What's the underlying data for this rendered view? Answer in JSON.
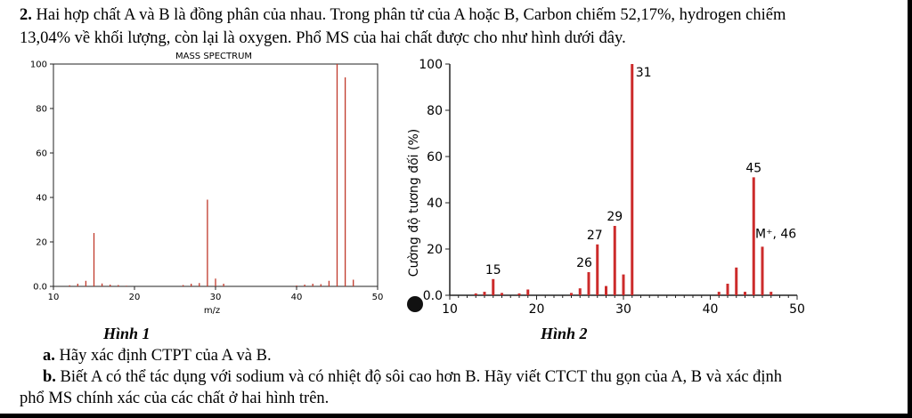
{
  "problem": {
    "number": "2.",
    "line1": "Hai hợp chất A và B là đồng phân của nhau. Trong phân tử của A hoặc B, Carbon chiếm 52,17%, hydrogen chiếm",
    "line2": "13,04% về khối lượng, còn lại là oxygen.  Phổ MS của hai chất được cho như hình dưới đây.",
    "part_a_label": "a.",
    "part_a": " Hãy xác định CTPT của A và B.",
    "part_b_label": "b.",
    "part_b_line1": " Biết A có thể tác dụng với sodium và có nhiệt độ sôi cao hơn B. Hãy viết CTCT thu gọn của A, B và xác định",
    "part_b_line2": "phổ MS chính xác của các chất ở hai hình trên."
  },
  "figures": {
    "caption1": "Hình 1",
    "caption2": "Hình 2"
  },
  "chart_data": [
    {
      "type": "bar",
      "title": "MASS SPECTRUM",
      "xlabel": "m/z",
      "ylabel": "",
      "xlim": [
        10,
        50
      ],
      "ylim": [
        0,
        100
      ],
      "xticks": [
        10,
        20,
        30,
        40,
        50
      ],
      "yticks": [
        0,
        20,
        40,
        60,
        80,
        100
      ],
      "bar_color": "#c0392b",
      "x": [
        12,
        13,
        14,
        15,
        16,
        17,
        18,
        19,
        26,
        27,
        28,
        29,
        30,
        31,
        40,
        41,
        42,
        43,
        44,
        45,
        46,
        47
      ],
      "values": [
        0.5,
        1.2,
        2.5,
        24,
        1.3,
        0.8,
        0.6,
        0.3,
        0.6,
        1.2,
        1.5,
        39,
        3.5,
        1.2,
        0.4,
        0.8,
        1.2,
        1.0,
        2.5,
        100,
        94,
        3
      ],
      "grid": false
    },
    {
      "type": "bar",
      "title": "",
      "xlabel": "",
      "ylabel": "Cường độ tương đối (%)",
      "xlim": [
        10,
        50
      ],
      "ylim": [
        0,
        100
      ],
      "xticks": [
        10,
        20,
        30,
        40,
        50
      ],
      "yticks": [
        0,
        20,
        40,
        60,
        80,
        100
      ],
      "bar_color": "#cc2b2b",
      "x": [
        13,
        14,
        15,
        16,
        18,
        19,
        24,
        25,
        26,
        27,
        28,
        29,
        30,
        31,
        41,
        42,
        43,
        44,
        45,
        46,
        47
      ],
      "values": [
        0.8,
        1.5,
        7,
        1,
        0.8,
        2.5,
        1,
        3,
        10,
        22,
        4,
        30,
        9,
        100,
        1.5,
        5,
        12,
        1.5,
        51,
        21,
        1.5
      ],
      "peak_labels": [
        {
          "x": 15,
          "label": "15"
        },
        {
          "x": 26,
          "label": "26"
        },
        {
          "x": 27,
          "label": "27"
        },
        {
          "x": 29,
          "label": "29"
        },
        {
          "x": 31,
          "label": "31"
        },
        {
          "x": 45,
          "label": "45"
        },
        {
          "x": 46,
          "label": "M⁺, 46"
        }
      ],
      "grid": false
    }
  ]
}
